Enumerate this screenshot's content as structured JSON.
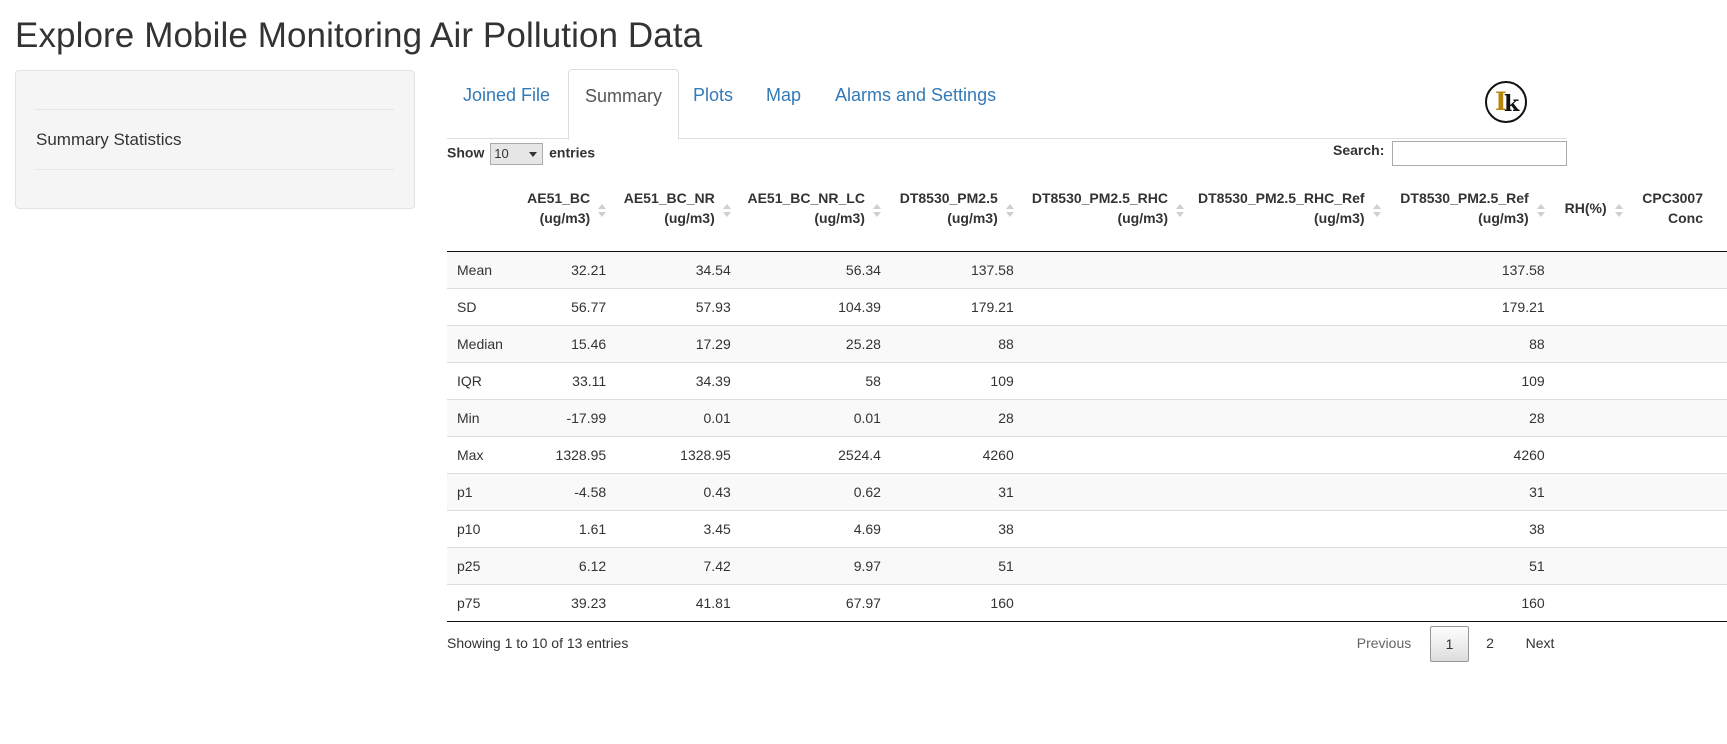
{
  "page_title": "Explore Mobile Monitoring Air Pollution Data",
  "sidebar": {
    "label": "Summary Statistics"
  },
  "tabs": [
    {
      "label": "Joined File",
      "active": false
    },
    {
      "label": "Summary",
      "active": true
    },
    {
      "label": "Plots",
      "active": false
    },
    {
      "label": "Map",
      "active": false
    },
    {
      "label": "Alarms and Settings",
      "active": false
    }
  ],
  "logo": {
    "icon": "logo-icon"
  },
  "controls": {
    "show_label": "Show",
    "length_value": "10",
    "entries_label": "entries",
    "search_label": "Search:",
    "search_value": ""
  },
  "table": {
    "columns": [
      {
        "line1": "",
        "line2": ""
      },
      {
        "line1": "AE51_BC",
        "line2": "(ug/m3)"
      },
      {
        "line1": "AE51_BC_NR",
        "line2": "(ug/m3)"
      },
      {
        "line1": "AE51_BC_NR_LC",
        "line2": "(ug/m3)"
      },
      {
        "line1": "DT8530_PM2.5",
        "line2": "(ug/m3)"
      },
      {
        "line1": "DT8530_PM2.5_RHC",
        "line2": "(ug/m3)"
      },
      {
        "line1": "DT8530_PM2.5_RHC_Ref",
        "line2": "(ug/m3)"
      },
      {
        "line1": "DT8530_PM2.5_Ref",
        "line2": "(ug/m3)"
      },
      {
        "line1": "RH(%)",
        "line2": ""
      },
      {
        "line1": "CPC3007",
        "line2": "Conc"
      }
    ],
    "rows": [
      [
        "Mean",
        "32.21",
        "34.54",
        "56.34",
        "137.58",
        "",
        "",
        "137.58",
        "",
        ""
      ],
      [
        "SD",
        "56.77",
        "57.93",
        "104.39",
        "179.21",
        "",
        "",
        "179.21",
        "",
        ""
      ],
      [
        "Median",
        "15.46",
        "17.29",
        "25.28",
        "88",
        "",
        "",
        "88",
        "",
        ""
      ],
      [
        "IQR",
        "33.11",
        "34.39",
        "58",
        "109",
        "",
        "",
        "109",
        "",
        ""
      ],
      [
        "Min",
        "-17.99",
        "0.01",
        "0.01",
        "28",
        "",
        "",
        "28",
        "",
        ""
      ],
      [
        "Max",
        "1328.95",
        "1328.95",
        "2524.4",
        "4260",
        "",
        "",
        "4260",
        "",
        ""
      ],
      [
        "p1",
        "-4.58",
        "0.43",
        "0.62",
        "31",
        "",
        "",
        "31",
        "",
        ""
      ],
      [
        "p10",
        "1.61",
        "3.45",
        "4.69",
        "38",
        "",
        "",
        "38",
        "",
        ""
      ],
      [
        "p25",
        "6.12",
        "7.42",
        "9.97",
        "51",
        "",
        "",
        "51",
        "",
        ""
      ],
      [
        "p75",
        "39.23",
        "41.81",
        "67.97",
        "160",
        "",
        "",
        "160",
        "",
        ""
      ]
    ]
  },
  "footer": {
    "info": "Showing 1 to 10 of 13 entries",
    "previous": "Previous",
    "pages": [
      "1",
      "2"
    ],
    "next": "Next"
  }
}
